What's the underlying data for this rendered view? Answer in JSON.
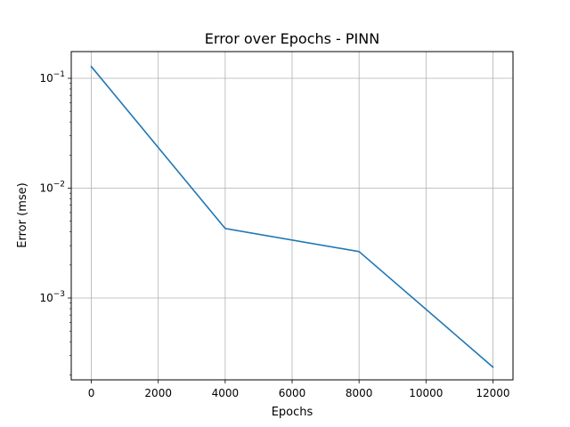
{
  "chart_data": {
    "type": "line",
    "title": "Error over Epochs - PINN",
    "xlabel": "Epochs",
    "ylabel": "Error (mse)",
    "x_ticks": [
      0,
      2000,
      4000,
      6000,
      8000,
      10000,
      12000
    ],
    "y_ticks": [
      {
        "value": 0.1,
        "base": "10",
        "exp": "−1"
      },
      {
        "value": 0.01,
        "base": "10",
        "exp": "−2"
      },
      {
        "value": 0.001,
        "base": "10",
        "exp": "−3"
      }
    ],
    "xlim": [
      -600,
      12600
    ],
    "ylim": [
      0.00018,
      0.175
    ],
    "yscale": "log",
    "grid": true,
    "series": [
      {
        "x": [
          0,
          4000,
          8000,
          12000
        ],
        "y": [
          0.128,
          0.0043,
          0.00265,
          0.000235
        ],
        "color": "#1f77b4"
      }
    ]
  }
}
